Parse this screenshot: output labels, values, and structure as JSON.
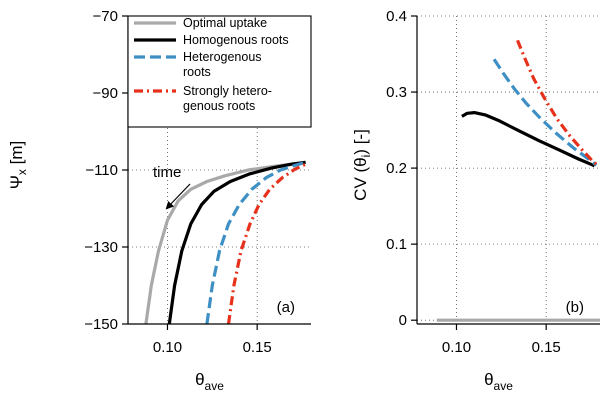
{
  "chart_data": [
    {
      "type": "line",
      "panel_label": "(a)",
      "xlabel_base": "θ",
      "xlabel_sub": "ave",
      "ylabel_base": "Ψ",
      "ylabel_sub": "x",
      "ylabel_unit": " [m]",
      "xlim": [
        0.078,
        0.18
      ],
      "ylim": [
        -150,
        -70
      ],
      "xticks": [
        0.1,
        0.15
      ],
      "xtick_labels": [
        "0.10",
        "0.15"
      ],
      "yticks": [
        -150,
        -130,
        -110,
        -90,
        -70
      ],
      "ytick_labels": [
        "−150",
        "−130",
        "−110",
        "−90",
        "−70"
      ],
      "grid": "dotted",
      "legend_placement": "top",
      "annotation": "time",
      "series": [
        {
          "name": "Optimal uptake",
          "color": "#a9a9a9",
          "dash": "solid",
          "x": [
            0.088,
            0.091,
            0.095,
            0.1,
            0.106,
            0.113,
            0.122,
            0.132,
            0.145,
            0.16,
            0.177
          ],
          "y": [
            -150,
            -140,
            -131,
            -123,
            -118,
            -115,
            -113,
            -111.5,
            -110,
            -109,
            -108
          ]
        },
        {
          "name": "Homogenous roots",
          "color": "#000000",
          "dash": "solid",
          "x": [
            0.101,
            0.104,
            0.108,
            0.113,
            0.119,
            0.126,
            0.135,
            0.146,
            0.158,
            0.169,
            0.177
          ],
          "y": [
            -150,
            -140,
            -131,
            -124,
            -119,
            -115.5,
            -113,
            -111,
            -109.5,
            -108.5,
            -108
          ]
        },
        {
          "name": "Heterogenous roots",
          "color": "#3d8fc4",
          "dash": "dash",
          "x": [
            0.122,
            0.125,
            0.129,
            0.134,
            0.14,
            0.147,
            0.155,
            0.163,
            0.171,
            0.177
          ],
          "y": [
            -150,
            -140,
            -131,
            -124,
            -119,
            -115,
            -112,
            -110,
            -108.8,
            -108
          ]
        },
        {
          "name": "Strongly hetero-genous roots",
          "color": "#e8311b",
          "dash": "dashdot",
          "x": [
            0.134,
            0.137,
            0.141,
            0.146,
            0.151,
            0.157,
            0.164,
            0.171,
            0.177
          ],
          "y": [
            -150,
            -140,
            -131,
            -124,
            -119,
            -115,
            -112,
            -109.8,
            -108.5
          ]
        }
      ]
    },
    {
      "type": "line",
      "panel_label": "(b)",
      "xlabel_base": "θ",
      "xlabel_sub": "ave",
      "ylabel_base": "CV (θ",
      "ylabel_sub": "i",
      "ylabel_unit": ") [-]",
      "xlim": [
        0.078,
        0.18
      ],
      "ylim": [
        -0.005,
        0.4
      ],
      "xticks": [
        0.1,
        0.15
      ],
      "xtick_labels": [
        "0.10",
        "0.15"
      ],
      "yticks": [
        0,
        0.1,
        0.2,
        0.3,
        0.4
      ],
      "ytick_labels": [
        "0",
        "0.1",
        "0.2",
        "0.3",
        "0.4"
      ],
      "grid": "dotted",
      "series": [
        {
          "name": "Optimal uptake",
          "color": "#a9a9a9",
          "dash": "solid",
          "x": [
            0.089,
            0.18
          ],
          "y": [
            0,
            0
          ]
        },
        {
          "name": "Homogenous roots",
          "color": "#000000",
          "dash": "solid",
          "x": [
            0.103,
            0.106,
            0.11,
            0.116,
            0.124,
            0.134,
            0.146,
            0.158,
            0.168,
            0.177
          ],
          "y": [
            0.268,
            0.272,
            0.273,
            0.27,
            0.262,
            0.25,
            0.236,
            0.223,
            0.212,
            0.203
          ]
        },
        {
          "name": "Heterogenous roots",
          "color": "#3d8fc4",
          "dash": "dash",
          "x": [
            0.121,
            0.126,
            0.132,
            0.139,
            0.147,
            0.156,
            0.165,
            0.173,
            0.178
          ],
          "y": [
            0.343,
            0.325,
            0.305,
            0.285,
            0.265,
            0.245,
            0.227,
            0.213,
            0.204
          ]
        },
        {
          "name": "Strongly hetero-genous roots",
          "color": "#e8311b",
          "dash": "dashdot",
          "x": [
            0.134,
            0.138,
            0.143,
            0.149,
            0.156,
            0.163,
            0.17,
            0.176,
            0.179
          ],
          "y": [
            0.368,
            0.345,
            0.318,
            0.292,
            0.265,
            0.243,
            0.224,
            0.209,
            0.203
          ]
        }
      ]
    }
  ],
  "legend": {
    "entries": [
      {
        "lines": [
          "Optimal uptake"
        ],
        "color": "#a9a9a9",
        "dash": "solid"
      },
      {
        "lines": [
          "Homogenous roots"
        ],
        "color": "#000000",
        "dash": "solid"
      },
      {
        "lines": [
          "Heterogenous",
          "roots"
        ],
        "color": "#3d8fc4",
        "dash": "dash"
      },
      {
        "lines": [
          "Strongly hetero-",
          "genous roots"
        ],
        "color": "#e8311b",
        "dash": "dashdot"
      }
    ]
  }
}
